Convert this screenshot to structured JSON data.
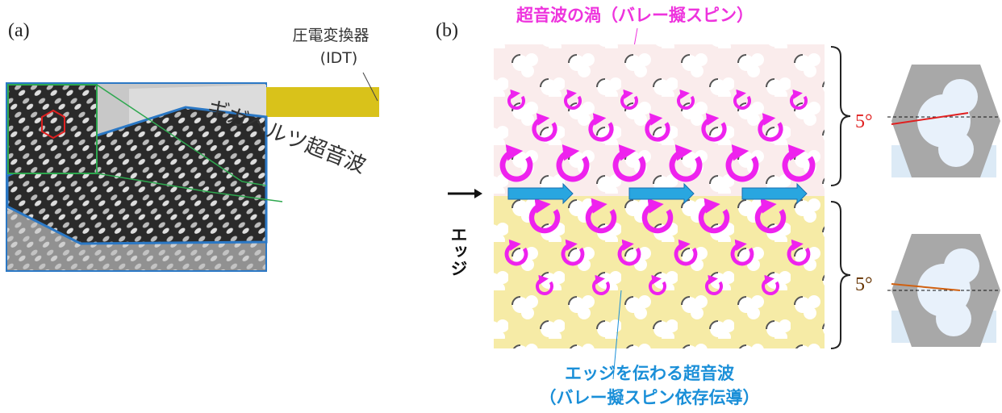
{
  "panel_a": {
    "label": "(a)",
    "transducer_label": "圧電変換器",
    "transducer_abbr": "(IDT)",
    "wave_label": "ギガヘルツ超音波"
  },
  "panel_b": {
    "label": "(b)",
    "vortex_label": "超音波の渦（バレー擬スピン）",
    "edge_label": "エッジ",
    "edge_wave_label": "エッジを伝わる超音波",
    "edge_wave_sub": "（バレー擬スピン依存伝導）",
    "angle_top": "5°",
    "angle_bottom": "5°"
  }
}
